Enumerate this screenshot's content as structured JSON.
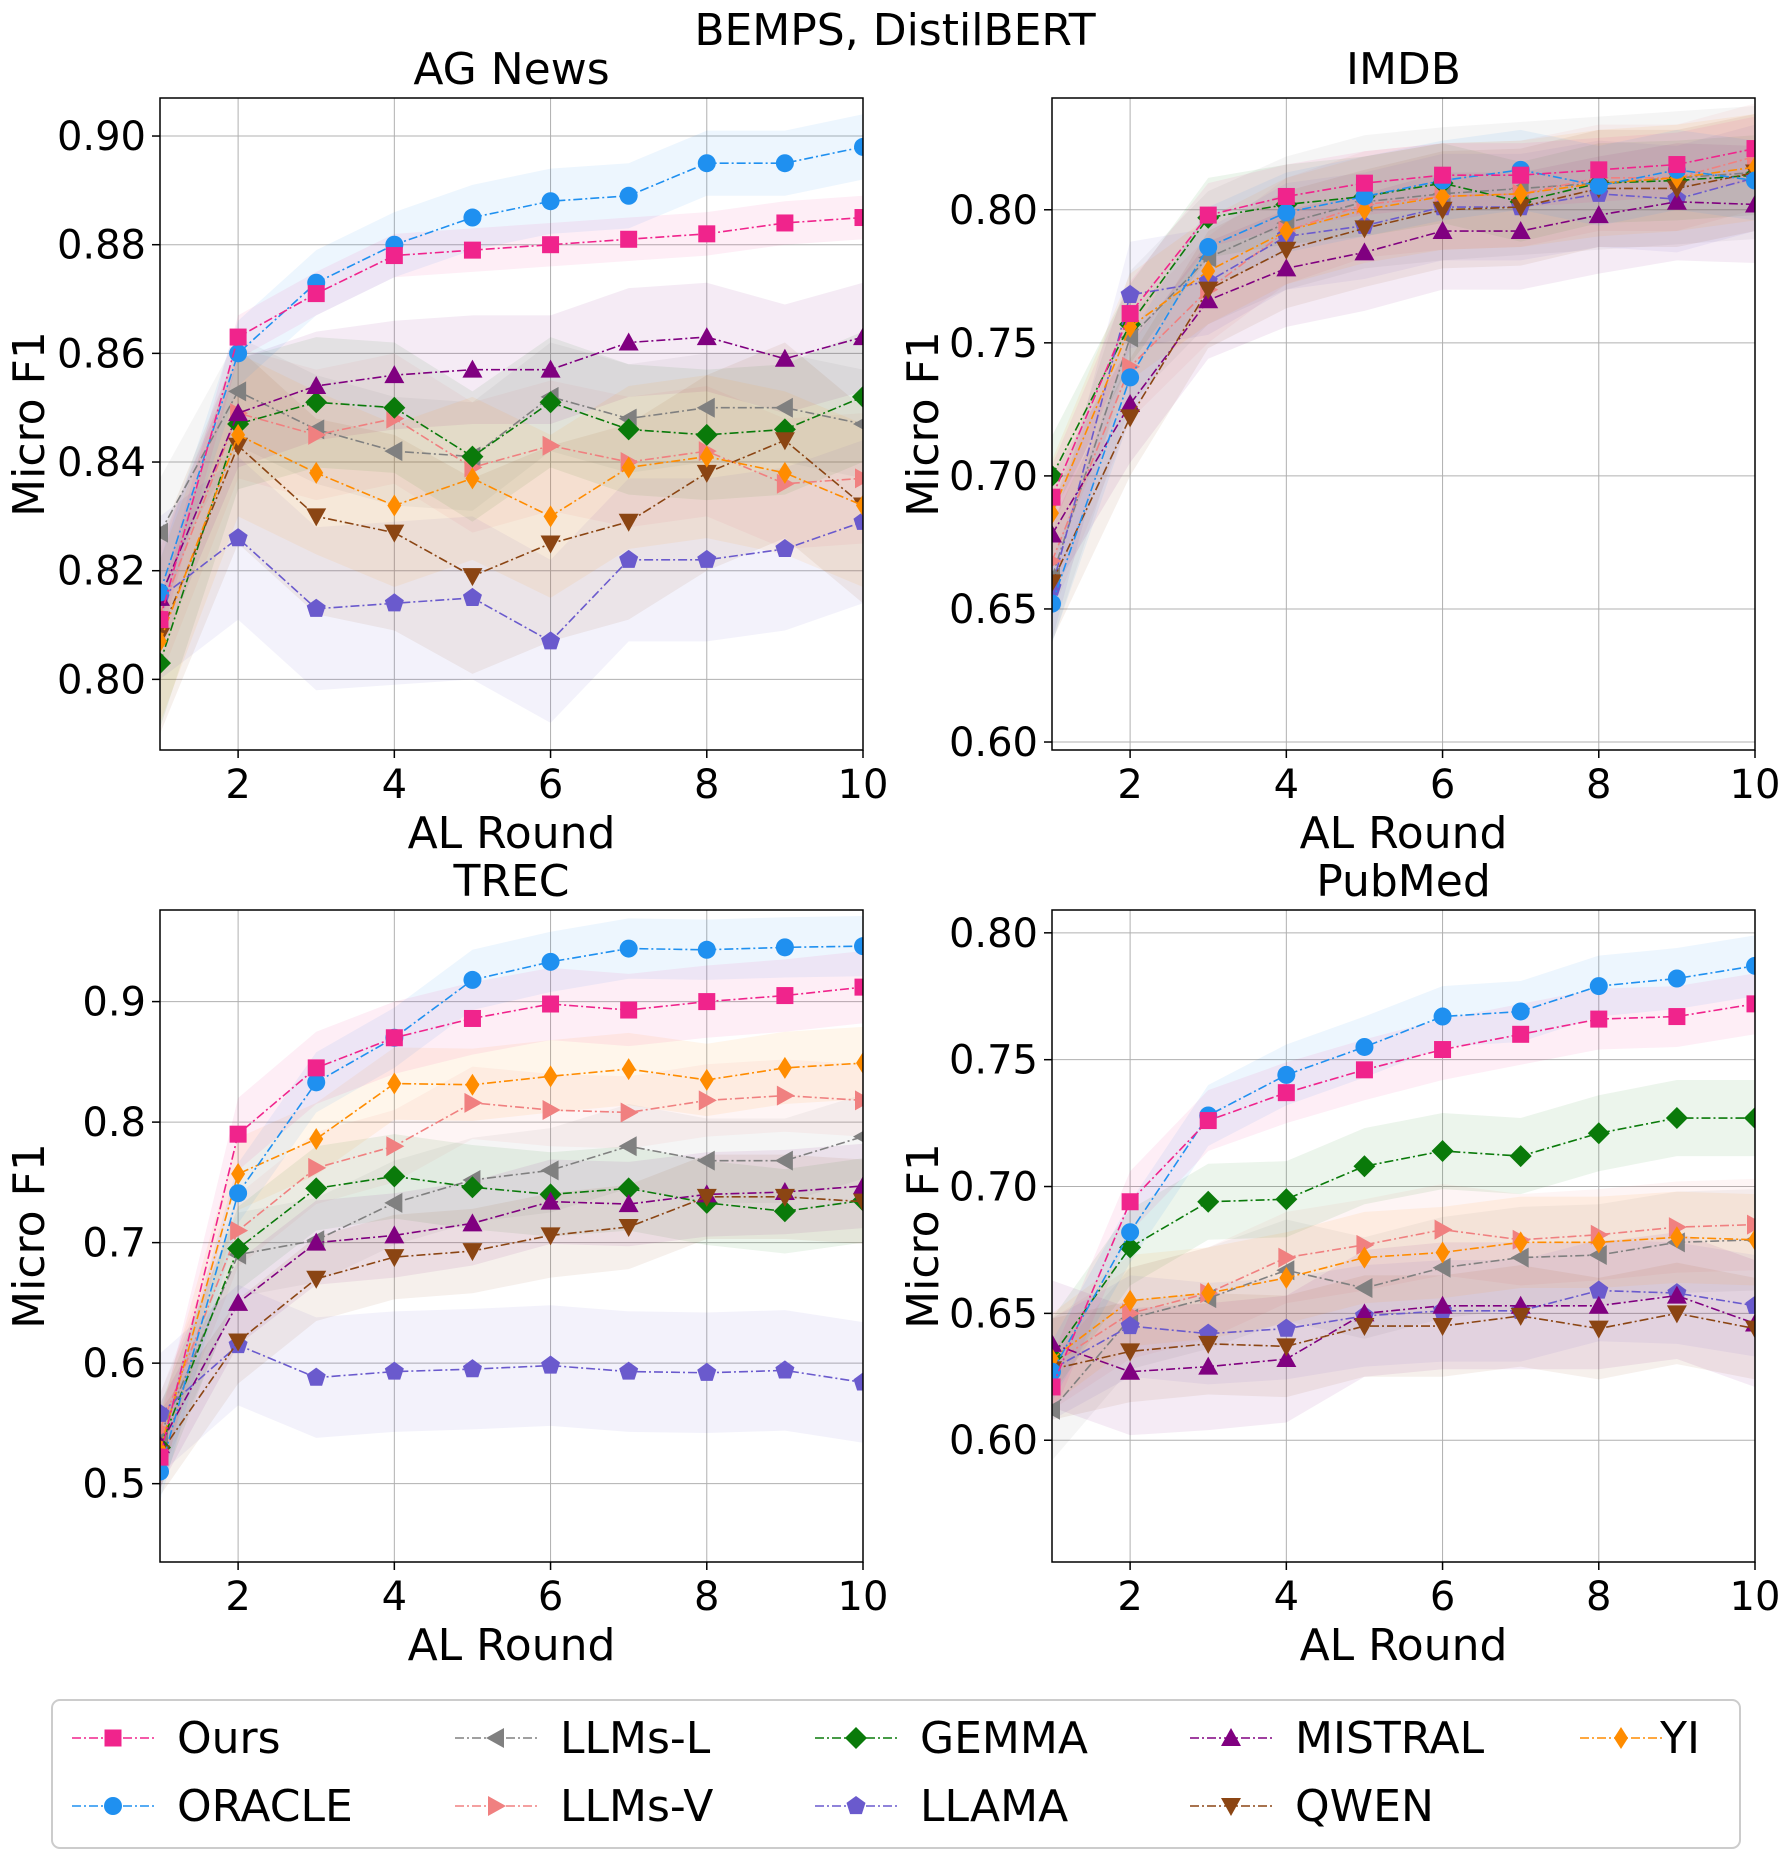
{
  "figure_title": "BEMPS, DistilBERT",
  "colors": {
    "Ours": "#f0248c",
    "ORACLE": "#1f90f0",
    "LLMs-L": "#808080",
    "LLMs-V": "#f08080",
    "GEMMA": "#0a7a0a",
    "LLAMA": "#6a5acd",
    "MISTRAL": "#800080",
    "QWEN": "#8b4513",
    "YI": "#ff8c00"
  },
  "markers": {
    "Ours": "square",
    "ORACLE": "circle",
    "LLMs-L": "triangle-left",
    "LLMs-V": "triangle-right",
    "GEMMA": "diamond",
    "LLAMA": "pentagon",
    "MISTRAL": "triangle-up",
    "QWEN": "triangle-down",
    "YI": "thin-diamond"
  },
  "legend": {
    "columns": [
      [
        "Ours",
        "ORACLE"
      ],
      [
        "LLMs-L",
        "LLMs-V"
      ],
      [
        "GEMMA",
        "LLAMA"
      ],
      [
        "MISTRAL",
        "QWEN"
      ],
      [
        "YI"
      ]
    ]
  },
  "chart_data": [
    {
      "type": "line",
      "title": "AG News",
      "xlabel": "AL Round",
      "ylabel": "Micro F1",
      "x": [
        1,
        2,
        3,
        4,
        5,
        6,
        7,
        8,
        9,
        10
      ],
      "xlim": [
        1,
        10
      ],
      "ylim": [
        0.787,
        0.907
      ],
      "xticks": [
        2,
        4,
        6,
        8,
        10
      ],
      "yticks": [
        0.8,
        0.82,
        0.84,
        0.86,
        0.88,
        0.9
      ],
      "ytick_labels": [
        "0.80",
        "0.82",
        "0.84",
        "0.86",
        "0.88",
        "0.90"
      ],
      "series": [
        {
          "name": "LLMs-L",
          "values": [
            0.827,
            0.853,
            0.846,
            0.842,
            0.841,
            0.852,
            0.848,
            0.85,
            0.85,
            0.847
          ],
          "band": 0.01
        },
        {
          "name": "LLMs-V",
          "values": [
            0.812,
            0.849,
            0.845,
            0.848,
            0.839,
            0.843,
            0.84,
            0.842,
            0.836,
            0.837
          ],
          "band": 0.012
        },
        {
          "name": "GEMMA",
          "values": [
            0.803,
            0.847,
            0.851,
            0.85,
            0.841,
            0.851,
            0.846,
            0.845,
            0.846,
            0.852
          ],
          "band": 0.012
        },
        {
          "name": "LLAMA",
          "values": [
            0.815,
            0.826,
            0.813,
            0.814,
            0.815,
            0.807,
            0.822,
            0.822,
            0.824,
            0.829
          ],
          "band": 0.015
        },
        {
          "name": "MISTRAL",
          "values": [
            0.815,
            0.849,
            0.854,
            0.856,
            0.857,
            0.857,
            0.862,
            0.863,
            0.859,
            0.863
          ],
          "band": 0.01
        },
        {
          "name": "QWEN",
          "values": [
            0.808,
            0.843,
            0.83,
            0.827,
            0.819,
            0.825,
            0.829,
            0.838,
            0.844,
            0.832
          ],
          "band": 0.018
        },
        {
          "name": "YI",
          "values": [
            0.807,
            0.845,
            0.838,
            0.832,
            0.837,
            0.83,
            0.839,
            0.841,
            0.838,
            0.832
          ],
          "band": 0.015
        },
        {
          "name": "ORACLE",
          "values": [
            0.816,
            0.86,
            0.873,
            0.88,
            0.885,
            0.888,
            0.889,
            0.895,
            0.895,
            0.898
          ],
          "band": 0.006
        },
        {
          "name": "Ours",
          "values": [
            0.811,
            0.863,
            0.871,
            0.878,
            0.879,
            0.88,
            0.881,
            0.882,
            0.884,
            0.885
          ],
          "band": 0.004
        }
      ]
    },
    {
      "type": "line",
      "title": "IMDB",
      "xlabel": "AL Round",
      "ylabel": "Micro F1",
      "x": [
        1,
        2,
        3,
        4,
        5,
        6,
        7,
        8,
        9,
        10
      ],
      "xlim": [
        1,
        10
      ],
      "ylim": [
        0.597,
        0.842
      ],
      "xticks": [
        2,
        4,
        6,
        8,
        10
      ],
      "yticks": [
        0.6,
        0.65,
        0.7,
        0.75,
        0.8
      ],
      "ytick_labels": [
        "0.60",
        "0.65",
        "0.70",
        "0.75",
        "0.80"
      ],
      "series": [
        {
          "name": "LLMs-L",
          "values": [
            0.662,
            0.752,
            0.782,
            0.795,
            0.803,
            0.806,
            0.808,
            0.81,
            0.812,
            0.814
          ],
          "band": 0.025
        },
        {
          "name": "LLMs-V",
          "values": [
            0.668,
            0.741,
            0.77,
            0.792,
            0.802,
            0.805,
            0.806,
            0.812,
            0.812,
            0.82
          ],
          "band": 0.02
        },
        {
          "name": "GEMMA",
          "values": [
            0.7,
            0.757,
            0.797,
            0.802,
            0.805,
            0.81,
            0.803,
            0.81,
            0.811,
            0.813
          ],
          "band": 0.015
        },
        {
          "name": "LLAMA",
          "values": [
            0.658,
            0.768,
            0.773,
            0.79,
            0.794,
            0.801,
            0.801,
            0.806,
            0.804,
            0.812
          ],
          "band": 0.02
        },
        {
          "name": "MISTRAL",
          "values": [
            0.678,
            0.727,
            0.766,
            0.778,
            0.784,
            0.792,
            0.792,
            0.798,
            0.803,
            0.802
          ],
          "band": 0.022
        },
        {
          "name": "QWEN",
          "values": [
            0.66,
            0.722,
            0.77,
            0.785,
            0.793,
            0.8,
            0.801,
            0.808,
            0.808,
            0.814
          ],
          "band": 0.022
        },
        {
          "name": "YI",
          "values": [
            0.686,
            0.756,
            0.777,
            0.792,
            0.8,
            0.805,
            0.806,
            0.81,
            0.812,
            0.816
          ],
          "band": 0.02
        },
        {
          "name": "ORACLE",
          "values": [
            0.652,
            0.737,
            0.786,
            0.799,
            0.805,
            0.811,
            0.815,
            0.809,
            0.815,
            0.811
          ],
          "band": 0.015
        },
        {
          "name": "Ours",
          "values": [
            0.692,
            0.761,
            0.798,
            0.805,
            0.81,
            0.813,
            0.813,
            0.815,
            0.817,
            0.823
          ],
          "band": 0.012
        }
      ]
    },
    {
      "type": "line",
      "title": "TREC",
      "xlabel": "AL Round",
      "ylabel": "Micro F1",
      "x": [
        1,
        2,
        3,
        4,
        5,
        6,
        7,
        8,
        9,
        10
      ],
      "xlim": [
        1,
        10
      ],
      "ylim": [
        0.435,
        0.976
      ],
      "xticks": [
        2,
        4,
        6,
        8,
        10
      ],
      "yticks": [
        0.5,
        0.6,
        0.7,
        0.8,
        0.9
      ],
      "ytick_labels": [
        "0.5",
        "0.6",
        "0.7",
        "0.8",
        "0.9"
      ],
      "series": [
        {
          "name": "LLMs-L",
          "values": [
            0.54,
            0.69,
            0.702,
            0.733,
            0.752,
            0.76,
            0.78,
            0.768,
            0.768,
            0.788
          ],
          "band": 0.035
        },
        {
          "name": "LLMs-V",
          "values": [
            0.545,
            0.71,
            0.762,
            0.78,
            0.816,
            0.81,
            0.808,
            0.818,
            0.822,
            0.818
          ],
          "band": 0.03
        },
        {
          "name": "GEMMA",
          "values": [
            0.53,
            0.695,
            0.745,
            0.755,
            0.746,
            0.74,
            0.745,
            0.733,
            0.726,
            0.735
          ],
          "band": 0.035
        },
        {
          "name": "LLAMA",
          "values": [
            0.558,
            0.615,
            0.588,
            0.593,
            0.595,
            0.598,
            0.593,
            0.592,
            0.594,
            0.584
          ],
          "band": 0.05
        },
        {
          "name": "MISTRAL",
          "values": [
            0.532,
            0.65,
            0.7,
            0.706,
            0.716,
            0.734,
            0.732,
            0.74,
            0.742,
            0.747
          ],
          "band": 0.035
        },
        {
          "name": "QWEN",
          "values": [
            0.525,
            0.618,
            0.67,
            0.688,
            0.693,
            0.706,
            0.713,
            0.738,
            0.738,
            0.734
          ],
          "band": 0.035
        },
        {
          "name": "YI",
          "values": [
            0.528,
            0.757,
            0.786,
            0.832,
            0.831,
            0.838,
            0.844,
            0.835,
            0.845,
            0.849
          ],
          "band": 0.03
        },
        {
          "name": "ORACLE",
          "values": [
            0.51,
            0.741,
            0.833,
            0.87,
            0.918,
            0.933,
            0.944,
            0.943,
            0.945,
            0.946
          ],
          "band": 0.025
        },
        {
          "name": "Ours",
          "values": [
            0.522,
            0.79,
            0.845,
            0.87,
            0.886,
            0.898,
            0.893,
            0.9,
            0.905,
            0.912
          ],
          "band": 0.03
        }
      ]
    },
    {
      "type": "line",
      "title": "PubMed",
      "xlabel": "AL Round",
      "ylabel": "Micro F1",
      "x": [
        1,
        2,
        3,
        4,
        5,
        6,
        7,
        8,
        9,
        10
      ],
      "xlim": [
        1,
        10
      ],
      "ylim": [
        0.552,
        0.809
      ],
      "xticks": [
        2,
        4,
        6,
        8,
        10
      ],
      "yticks": [
        0.6,
        0.65,
        0.7,
        0.75,
        0.8
      ],
      "ytick_labels": [
        "0.60",
        "0.65",
        "0.70",
        "0.75",
        "0.80"
      ],
      "series": [
        {
          "name": "LLMs-L",
          "values": [
            0.612,
            0.648,
            0.656,
            0.667,
            0.66,
            0.668,
            0.672,
            0.673,
            0.678,
            0.679
          ],
          "band": 0.02
        },
        {
          "name": "LLMs-V",
          "values": [
            0.63,
            0.65,
            0.658,
            0.672,
            0.677,
            0.683,
            0.679,
            0.681,
            0.684,
            0.685
          ],
          "band": 0.018
        },
        {
          "name": "GEMMA",
          "values": [
            0.633,
            0.676,
            0.694,
            0.695,
            0.708,
            0.714,
            0.712,
            0.721,
            0.727,
            0.727
          ],
          "band": 0.015
        },
        {
          "name": "LLAMA",
          "values": [
            0.628,
            0.645,
            0.642,
            0.644,
            0.649,
            0.651,
            0.651,
            0.659,
            0.658,
            0.653
          ],
          "band": 0.02
        },
        {
          "name": "MISTRAL",
          "values": [
            0.638,
            0.627,
            0.629,
            0.632,
            0.65,
            0.653,
            0.653,
            0.653,
            0.657,
            0.646
          ],
          "band": 0.025
        },
        {
          "name": "QWEN",
          "values": [
            0.628,
            0.635,
            0.638,
            0.637,
            0.645,
            0.645,
            0.649,
            0.644,
            0.65,
            0.644
          ],
          "band": 0.02
        },
        {
          "name": "YI",
          "values": [
            0.632,
            0.655,
            0.658,
            0.664,
            0.672,
            0.674,
            0.678,
            0.678,
            0.68,
            0.679
          ],
          "band": 0.018
        },
        {
          "name": "ORACLE",
          "values": [
            0.627,
            0.682,
            0.728,
            0.744,
            0.755,
            0.767,
            0.769,
            0.779,
            0.782,
            0.787
          ],
          "band": 0.012
        },
        {
          "name": "Ours",
          "values": [
            0.621,
            0.694,
            0.726,
            0.737,
            0.746,
            0.754,
            0.76,
            0.766,
            0.767,
            0.772
          ],
          "band": 0.012
        }
      ]
    }
  ]
}
